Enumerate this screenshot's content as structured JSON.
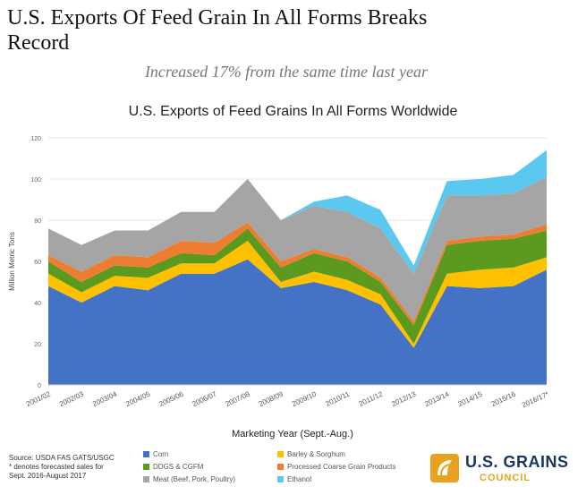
{
  "header": {
    "headline": "U.S. Exports Of Feed Grain In All Forms Breaks Record",
    "subheadline": "Increased 17% from the same time last year"
  },
  "chart_data": {
    "type": "area",
    "stacked": true,
    "title": "U.S. Exports of Feed Grains In All Forms Worldwide",
    "xlabel": "Marketing Year (Sept.-Aug.)",
    "ylabel": "Million Metric Tons",
    "ylim": [
      0,
      120
    ],
    "yticks": [
      0,
      20,
      40,
      60,
      80,
      100,
      120
    ],
    "grid": true,
    "legend_position": "bottom",
    "categories": [
      "2001/02",
      "2002/03",
      "2003/04",
      "2004/05",
      "2005/06",
      "2006/07",
      "2007/08",
      "2008/09",
      "2009/10",
      "2010/11",
      "2011/12",
      "2012/13",
      "2013/14",
      "2014/15",
      "2015/16",
      "2016/17*"
    ],
    "series": [
      {
        "name": "Corn",
        "color": "#4472c4",
        "values": [
          48,
          40,
          48,
          46,
          54,
          54,
          61,
          47,
          50,
          46,
          39,
          18,
          48,
          47,
          48,
          56
        ]
      },
      {
        "name": "Barley & Sorghum",
        "color": "#ffc000",
        "values": [
          6,
          5,
          5,
          6,
          5,
          5,
          9,
          3,
          5,
          5,
          5,
          2,
          6,
          9,
          9,
          6
        ]
      },
      {
        "name": "DDGS & CGFM",
        "color": "#5b9a1e",
        "values": [
          6,
          5,
          5,
          5,
          5,
          4,
          6,
          7,
          9,
          9,
          6,
          9,
          14,
          14,
          14,
          13
        ]
      },
      {
        "name": "Processed Coarse Grain Products",
        "color": "#ed7d31",
        "values": [
          3,
          5,
          5,
          5,
          6,
          6,
          3,
          3,
          2,
          2,
          2,
          2,
          2,
          2,
          2,
          3
        ]
      },
      {
        "name": "Meat (Beef, Pork, Poultry)",
        "color": "#a5a5a5",
        "values": [
          13,
          13,
          12,
          13,
          14,
          15,
          21,
          20,
          21,
          22,
          24,
          23,
          22,
          20,
          20,
          23
        ]
      },
      {
        "name": "Ethanol",
        "color": "#5bc8f0",
        "values": [
          0,
          0,
          0,
          0,
          0,
          0,
          0,
          0,
          2,
          8,
          9,
          4,
          7,
          8,
          9,
          13
        ]
      }
    ]
  },
  "footer": {
    "source_line1": "Source: USDA FAS GATS/USGC",
    "source_line2": "* denotes forecasted sales for",
    "source_line3": "Sept. 2016-August 2017"
  },
  "logo": {
    "line1": "U.S. GRAINS",
    "line2": "COUNCIL",
    "colors": {
      "navy": "#1c3664",
      "gold": "#e8a21f"
    }
  }
}
